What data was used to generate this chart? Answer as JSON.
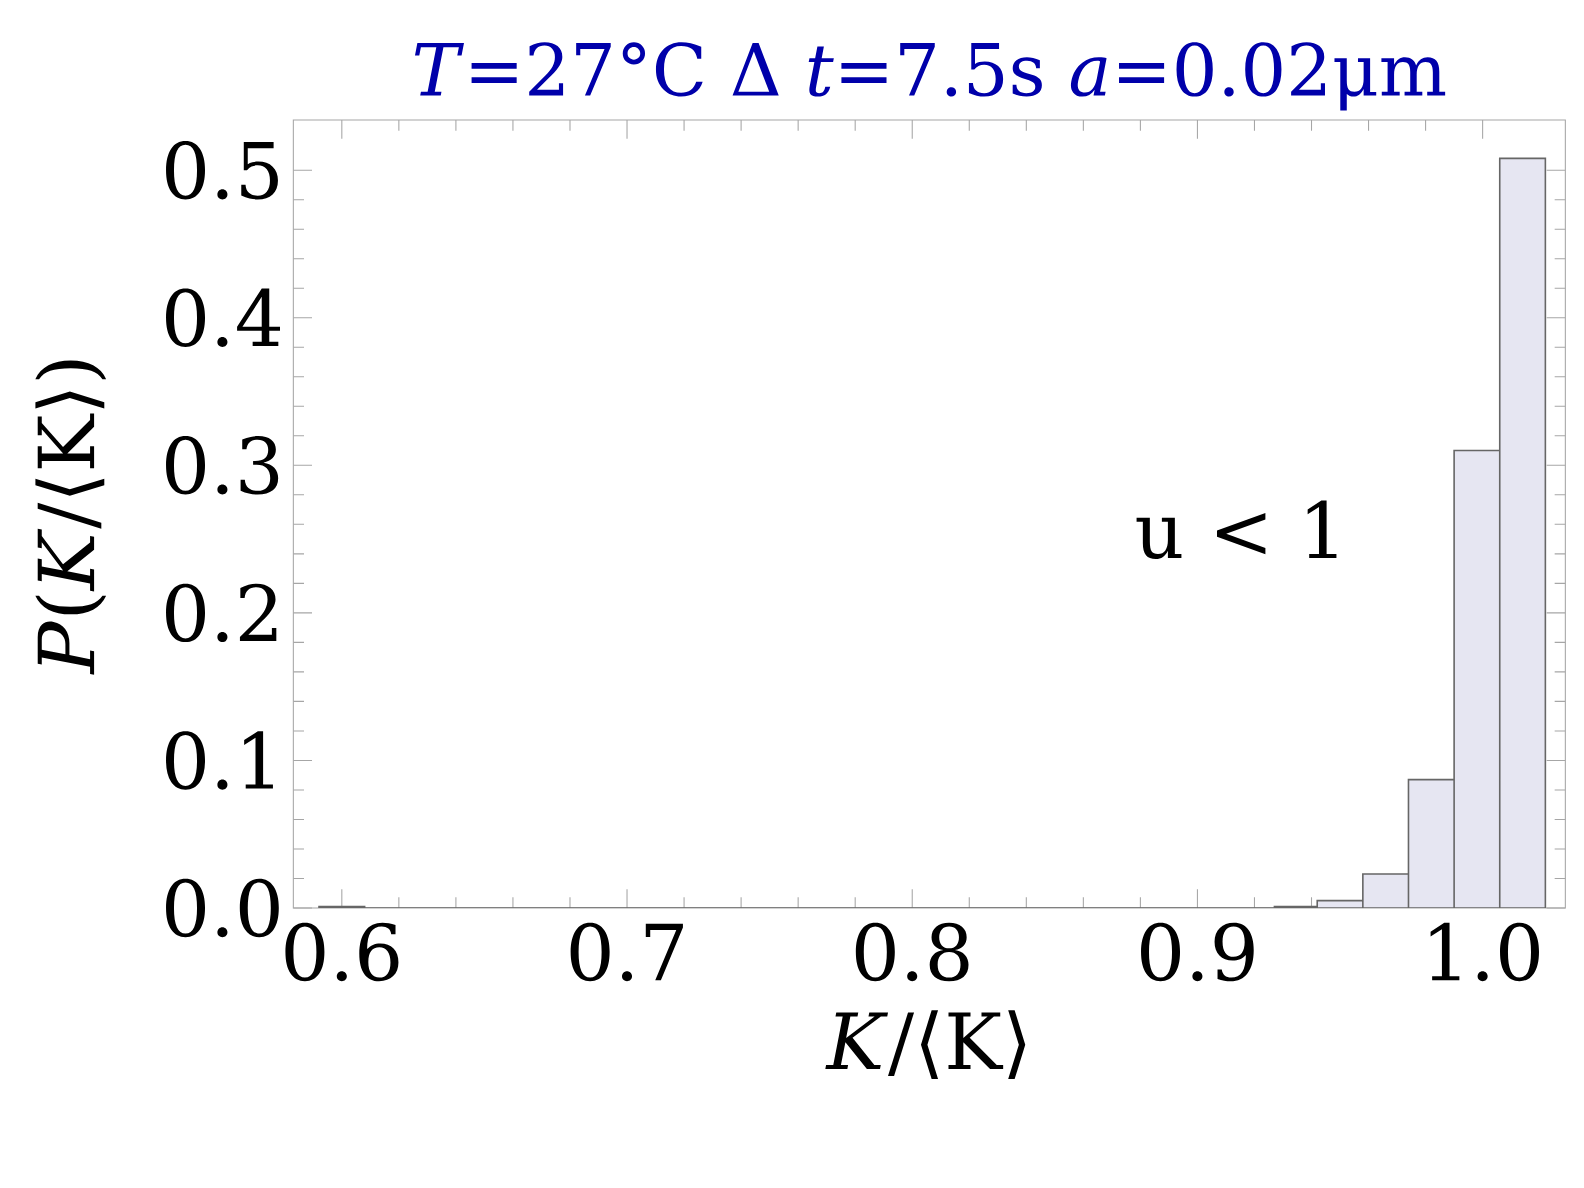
{
  "chart_data": {
    "type": "histogram",
    "title": "*T*=27°C  Δ *t*=7.5s  *a*=0.02μm",
    "xlabel": "*K*/⟨K⟩",
    "ylabel": "*P*(*K*/⟨K⟩)",
    "annotations": [
      "u < 1"
    ],
    "bins": [
      0.592,
      0.608,
      0.927,
      0.942,
      0.958,
      0.974,
      0.99,
      1.006,
      1.022
    ],
    "values": [
      0.001,
      0,
      0.001,
      0.005,
      0.023,
      0.087,
      0.31,
      0.508
    ],
    "color": "#e6e6f2",
    "xlim": [
      0.583,
      1.029
    ],
    "ylim": [
      0,
      0.534
    ],
    "xticks": [
      0.6,
      0.7,
      0.8,
      0.9,
      {
        "value": 1.0,
        "label": "1.0"
      }
    ],
    "yticks": [
      {
        "value": 0,
        "label": "0.0"
      },
      0.1,
      0.2,
      0.3,
      0.4,
      0.5
    ],
    "grid": false
  }
}
